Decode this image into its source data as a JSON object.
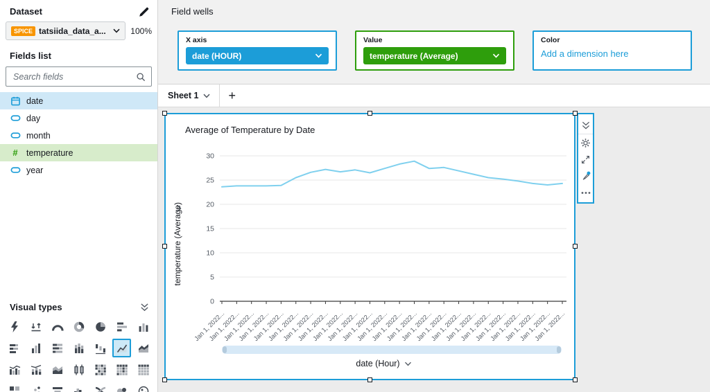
{
  "colors": {
    "accent_blue": "#1C9DD8",
    "accent_green": "#2E9E0C",
    "spice_orange": "#F89500",
    "line_blue": "#7FD0EE",
    "field_selected_blue": "#cfe8f7",
    "field_selected_green": "#d7eccb"
  },
  "sidebar": {
    "dataset_label": "Dataset",
    "dataset": {
      "badge": "SPICE",
      "name": "tatsiida_data_a...",
      "progress": "100%"
    },
    "fields_list_label": "Fields list",
    "search_placeholder": "Search fields",
    "fields": [
      {
        "label": "date",
        "type": "date",
        "selected": true
      },
      {
        "label": "day",
        "type": "dimension",
        "selected": false
      },
      {
        "label": "month",
        "type": "dimension",
        "selected": false
      },
      {
        "label": "temperature",
        "type": "measure",
        "selected": true
      },
      {
        "label": "year",
        "type": "dimension",
        "selected": false
      }
    ],
    "visual_types_label": "Visual types",
    "visual_types_selected": "line-chart",
    "visual_type_icons": [
      "auto-graph",
      "kpi",
      "gauge",
      "donut-chart",
      "pie-chart",
      "horizontal-bar",
      "vertical-bar",
      "horizontal-stacked-bar",
      "vertical-grouped-bar",
      "horizontal-stacked-100-bar",
      "vertical-stacked-bar",
      "waterfall",
      "line-chart",
      "area-chart",
      "combo-clustered-bar",
      "combo-stacked-bar",
      "stacked-area",
      "box-plot",
      "heat-map",
      "pivot-table",
      "table",
      "insights",
      "scatter-plot",
      "funnel",
      "histogram",
      "sankey",
      "word-cloud",
      "geospatial-map"
    ]
  },
  "field_wells": {
    "title": "Field wells",
    "wells": [
      {
        "label": "X axis",
        "value": "date (HOUR)",
        "style": "pill",
        "color": "#1C9DD8"
      },
      {
        "label": "Value",
        "value": "temperature (Average)",
        "style": "pill",
        "color": "#2E9E0C"
      },
      {
        "label": "Color",
        "value": "Add a dimension here",
        "style": "link",
        "color": "#1C9DD8"
      }
    ]
  },
  "sheet_bar": {
    "active_tab": "Sheet 1",
    "add_label": "+"
  },
  "visual": {
    "title": "Average of Temperature by Date",
    "y_axis_title": "temperature (Average)",
    "x_axis_title": "date (Hour)",
    "toolbar_icons": [
      "double-chevron-down",
      "gear",
      "maximize",
      "format-brush",
      "ellipsis"
    ]
  },
  "chart_data": {
    "type": "line",
    "title": "Average of Temperature by Date",
    "xlabel": "date (Hour)",
    "ylabel": "temperature (Average)",
    "x": [
      "Jan 1, 2022...",
      "Jan 1, 2022...",
      "Jan 1, 2022...",
      "Jan 1, 2022...",
      "Jan 1, 2022...",
      "Jan 1, 2022...",
      "Jan 1, 2022...",
      "Jan 1, 2022...",
      "Jan 1, 2022...",
      "Jan 1, 2022...",
      "Jan 1, 2022...",
      "Jan 1, 2022...",
      "Jan 1, 2022...",
      "Jan 1, 2022...",
      "Jan 1, 2022...",
      "Jan 1, 2022...",
      "Jan 1, 2022...",
      "Jan 1, 2022...",
      "Jan 1, 2022...",
      "Jan 1, 2022...",
      "Jan 1, 2022...",
      "Jan 1, 2022...",
      "Jan 1, 2022...",
      "Jan 1, 2022..."
    ],
    "values": [
      23.6,
      23.8,
      23.8,
      23.8,
      23.9,
      25.5,
      26.6,
      27.2,
      26.7,
      27.1,
      26.5,
      27.4,
      28.3,
      28.9,
      27.4,
      27.6,
      26.9,
      26.2,
      25.5,
      25.2,
      24.8,
      24.3,
      24.0,
      24.3
    ],
    "ylim": [
      0,
      30
    ],
    "yticks": [
      0,
      5,
      10,
      15,
      20,
      25,
      30
    ],
    "grid": true,
    "legend": "none",
    "line_color": "#7FD0EE"
  }
}
